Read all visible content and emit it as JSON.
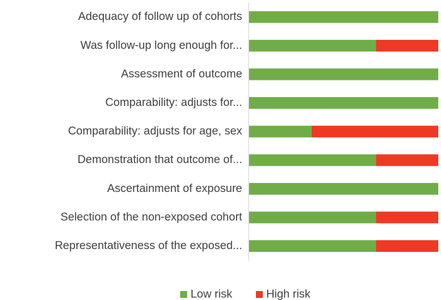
{
  "chart_data": {
    "type": "stacked-bar-horizontal",
    "categories": [
      "Adequacy of follow up of cohorts",
      "Was follow-up long enough for...",
      "Assessment of outcome",
      "Comparability: adjusts for...",
      "Comparability: adjusts for age, sex",
      "Demonstration that outcome of...",
      "Ascertainment of exposure",
      "Selection of the non-exposed cohort",
      "Representativeness of the exposed..."
    ],
    "series": [
      {
        "name": "Low risk",
        "color": "#70ad47",
        "values": [
          100,
          67,
          100,
          100,
          33,
          67,
          100,
          67,
          67
        ]
      },
      {
        "name": "High risk",
        "color": "#ee3a24",
        "values": [
          0,
          33,
          0,
          0,
          67,
          33,
          0,
          33,
          33
        ]
      }
    ],
    "xlim": [
      0,
      100
    ]
  }
}
